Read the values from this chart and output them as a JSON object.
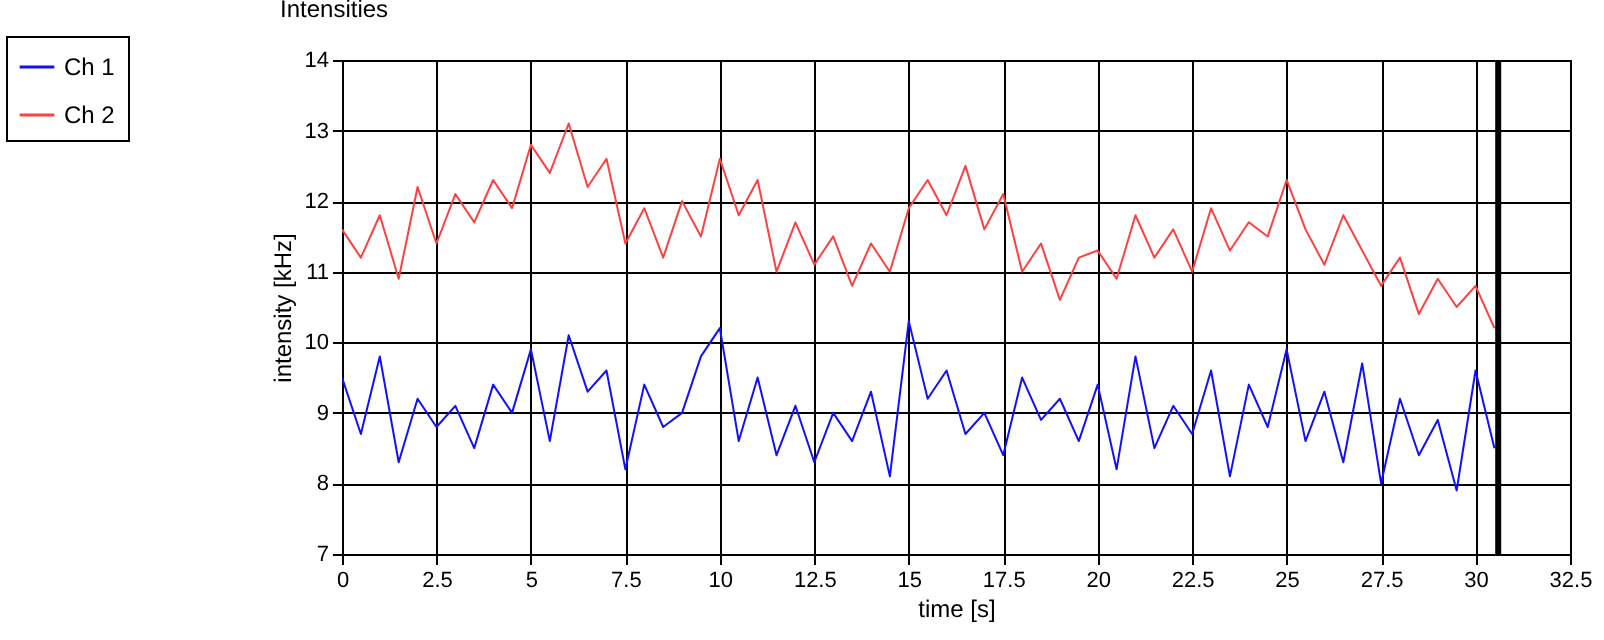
{
  "chart_data": {
    "type": "line",
    "title": "Intensities",
    "xlabel": "time [s]",
    "ylabel": "intensity [kHz]",
    "x": [
      0,
      0.5,
      1,
      1.5,
      2,
      2.5,
      3,
      3.5,
      4,
      4.5,
      5,
      5.5,
      6,
      6.5,
      7,
      7.5,
      8,
      8.5,
      9,
      9.5,
      10,
      10.5,
      11,
      11.5,
      12,
      12.5,
      13,
      13.5,
      14,
      14.5,
      15,
      15.5,
      16,
      16.5,
      17,
      17.5,
      18,
      18.5,
      19,
      19.5,
      20,
      20.5,
      21,
      21.5,
      22,
      22.5,
      23,
      23.5,
      24,
      24.5,
      25,
      25.5,
      26,
      26.5,
      27,
      27.5,
      28,
      28.5,
      29,
      29.5,
      30,
      30.5
    ],
    "series": [
      {
        "name": "Ch 1",
        "color": "#1010ff",
        "values": [
          9.5,
          8.7,
          9.8,
          8.3,
          9.2,
          8.8,
          9.1,
          8.5,
          9.4,
          9.0,
          9.9,
          8.6,
          10.1,
          9.3,
          9.6,
          8.2,
          9.4,
          8.8,
          9.0,
          9.8,
          10.2,
          8.6,
          9.5,
          8.4,
          9.1,
          8.3,
          9.0,
          8.6,
          9.3,
          8.1,
          10.3,
          9.2,
          9.6,
          8.7,
          9.0,
          8.4,
          9.5,
          8.9,
          9.2,
          8.6,
          9.4,
          8.2,
          9.8,
          8.5,
          9.1,
          8.7,
          9.6,
          8.1,
          9.4,
          8.8,
          9.9,
          8.6,
          9.3,
          8.3,
          9.7,
          8.0,
          9.2,
          8.4,
          8.9,
          7.9,
          9.6,
          8.5
        ]
      },
      {
        "name": "Ch 2",
        "color": "#ff4040",
        "values": [
          11.6,
          11.2,
          11.8,
          10.9,
          12.2,
          11.4,
          12.1,
          11.7,
          12.3,
          11.9,
          12.8,
          12.4,
          13.1,
          12.2,
          12.6,
          11.4,
          11.9,
          11.2,
          12.0,
          11.5,
          12.6,
          11.8,
          12.3,
          11.0,
          11.7,
          11.1,
          11.5,
          10.8,
          11.4,
          11.0,
          11.9,
          12.3,
          11.8,
          12.5,
          11.6,
          12.1,
          11.0,
          11.4,
          10.6,
          11.2,
          11.3,
          10.9,
          11.8,
          11.2,
          11.6,
          11.0,
          11.9,
          11.3,
          11.7,
          11.5,
          12.3,
          11.6,
          11.1,
          11.8,
          11.3,
          10.8,
          11.2,
          10.4,
          10.9,
          10.5,
          10.8,
          10.2
        ]
      }
    ],
    "xlim": [
      0,
      32.5
    ],
    "xticks": [
      0,
      2.5,
      5,
      7.5,
      10,
      12.5,
      15,
      17.5,
      20,
      22.5,
      25,
      27.5,
      30,
      32.5
    ],
    "ylim": [
      7,
      14
    ],
    "yticks": [
      7,
      8,
      9,
      10,
      11,
      12,
      13,
      14
    ],
    "ref_lines": [
      {
        "axis": "x",
        "value": 30.6,
        "color": "#000000"
      }
    ],
    "grid": true,
    "legend": "top left"
  }
}
